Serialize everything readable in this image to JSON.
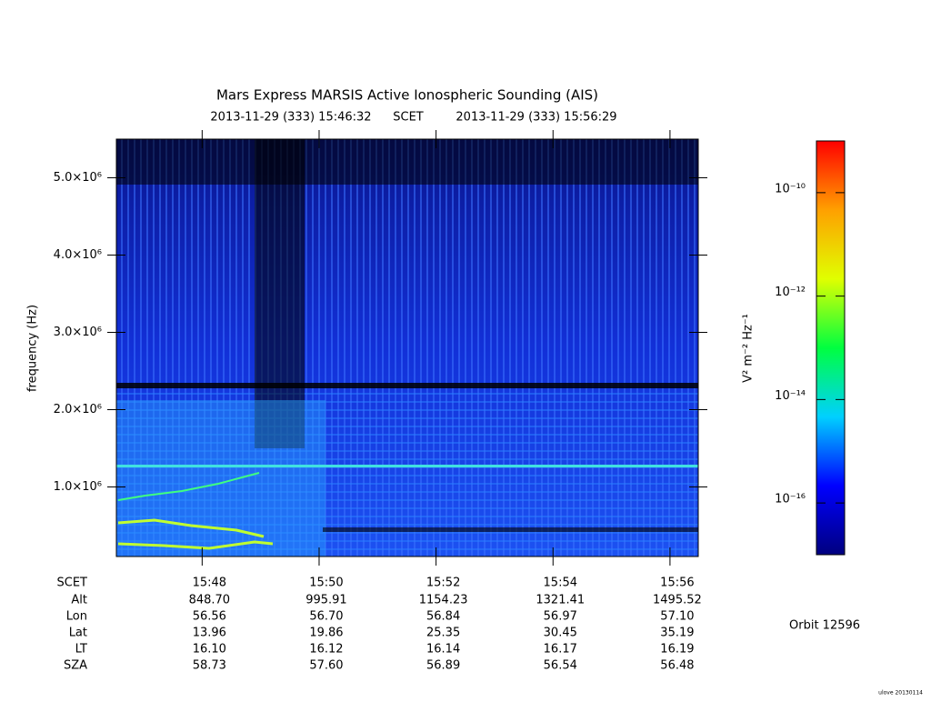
{
  "chart_data": {
    "type": "spectrogram",
    "title": "Mars Express MARSIS Active Ionospheric Sounding (AIS)",
    "start_date": "2013-11-29 (333) 15:46:32",
    "time_system": "SCET",
    "end_date": "2013-11-29 (333) 15:56:29",
    "ylabel": "frequency (Hz)",
    "xlim": [
      "15:46:32",
      "15:56:29"
    ],
    "xticks": [
      "15:48",
      "15:50",
      "15:52",
      "15:54",
      "15:56"
    ],
    "ylim": [
      100000,
      5500000
    ],
    "yticks": [
      {
        "value": 1000000,
        "label": "1.0×10⁶"
      },
      {
        "value": 2000000,
        "label": "2.0×10⁶"
      },
      {
        "value": 3000000,
        "label": "3.0×10⁶"
      },
      {
        "value": 4000000,
        "label": "4.0×10⁶"
      },
      {
        "value": 5000000,
        "label": "5.0×10⁶"
      }
    ],
    "colorbar": {
      "label": "V² m⁻² Hz⁻¹",
      "log_scale": true,
      "zlim": [
        1e-17,
        1e-09
      ],
      "ticks": [
        {
          "value": 1e-16,
          "label": "10⁻¹⁶"
        },
        {
          "value": 1e-14,
          "label": "10⁻¹⁴"
        },
        {
          "value": 1e-12,
          "label": "10⁻¹²"
        },
        {
          "value": 1e-10,
          "label": "10⁻¹⁰"
        }
      ],
      "colors": [
        "#00007f",
        "#0000ff",
        "#00d0ff",
        "#00ff40",
        "#e0ff00",
        "#ffa000",
        "#ff0000"
      ]
    }
  },
  "ephemeris": {
    "time_label": "SCET",
    "rows": [
      {
        "label": "Alt",
        "values": [
          "848.70",
          "995.91",
          "1154.23",
          "1321.41",
          "1495.52"
        ]
      },
      {
        "label": "Lon",
        "values": [
          "56.56",
          "56.70",
          "56.84",
          "56.97",
          "57.10"
        ]
      },
      {
        "label": "Lat",
        "values": [
          "13.96",
          "19.86",
          "25.35",
          "30.45",
          "35.19"
        ]
      },
      {
        "label": "LT",
        "values": [
          "16.10",
          "16.12",
          "16.14",
          "16.17",
          "16.19"
        ]
      },
      {
        "label": "SZA",
        "values": [
          "58.73",
          "57.60",
          "56.89",
          "56.54",
          "56.48"
        ]
      }
    ]
  },
  "orbit": "Orbit 12596",
  "footer": "ulove 20130114"
}
